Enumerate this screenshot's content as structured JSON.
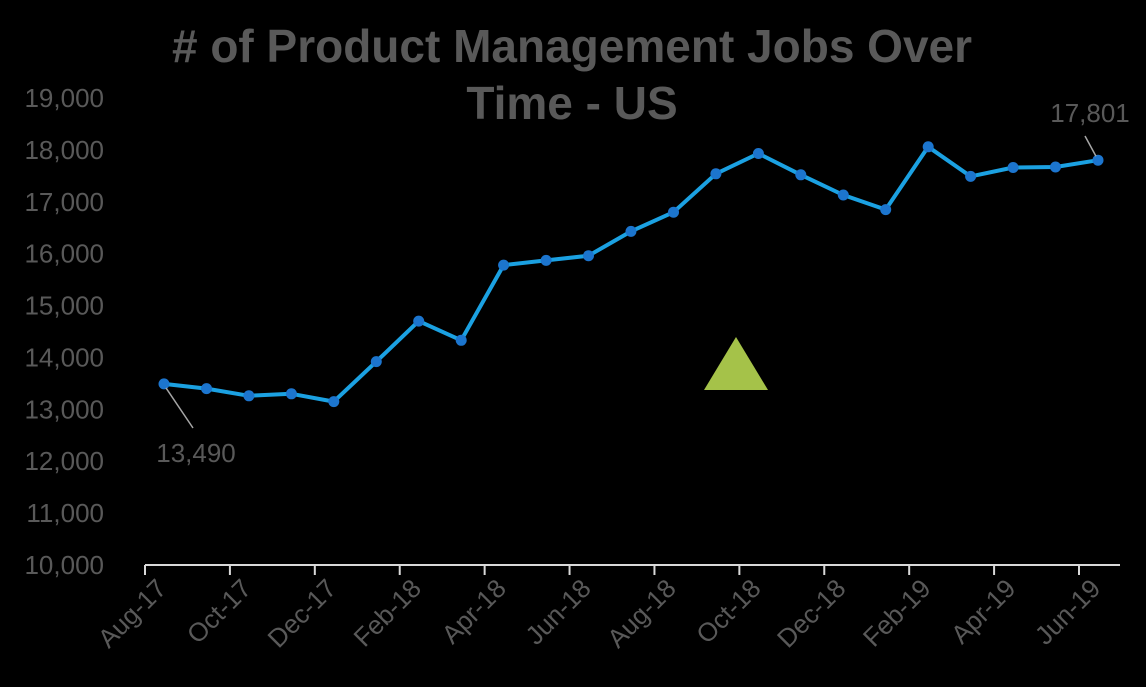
{
  "chart_data": {
    "type": "line",
    "title_lines": [
      "# of Product Management Jobs Over",
      "Time - US"
    ],
    "xlabel": "",
    "ylabel": "",
    "ylim": [
      10000,
      19000
    ],
    "yticks": [
      10000,
      11000,
      12000,
      13000,
      14000,
      15000,
      16000,
      17000,
      18000,
      19000
    ],
    "ytick_labels": [
      "10,000",
      "11,000",
      "12,000",
      "13,000",
      "14,000",
      "15,000",
      "16,000",
      "17,000",
      "18,000",
      "19,000"
    ],
    "x_tick_labels": [
      "Aug-17",
      "Oct-17",
      "Dec-17",
      "Feb-18",
      "Apr-18",
      "Jun-18",
      "Aug-18",
      "Oct-18",
      "Dec-18",
      "Feb-19",
      "Apr-19",
      "Jun-19"
    ],
    "grid": false,
    "legend": "none",
    "series": [
      {
        "color": "#1BA1E2",
        "marker_color": "#1C75CE",
        "points": [
          {
            "x": "Aug-17",
            "y": 13490
          },
          {
            "x": "Sep-17",
            "y": 13400
          },
          {
            "x": "Oct-17",
            "y": 13260
          },
          {
            "x": "Nov-17",
            "y": 13300
          },
          {
            "x": "Dec-17",
            "y": 13150
          },
          {
            "x": "Jan-18",
            "y": 13920
          },
          {
            "x": "Feb-18",
            "y": 14700
          },
          {
            "x": "Mar-18",
            "y": 14330
          },
          {
            "x": "Apr-18",
            "y": 15780
          },
          {
            "x": "May-18",
            "y": 15870
          },
          {
            "x": "Jun-18",
            "y": 15960
          },
          {
            "x": "Jul-18",
            "y": 16430
          },
          {
            "x": "Aug-18",
            "y": 16800
          },
          {
            "x": "Sep-18",
            "y": 17540
          },
          {
            "x": "Oct-18",
            "y": 17930
          },
          {
            "x": "Nov-18",
            "y": 17520
          },
          {
            "x": "Dec-18",
            "y": 17130
          },
          {
            "x": "Jan-19",
            "y": 16850
          },
          {
            "x": "Feb-19",
            "y": 18060
          },
          {
            "x": "Mar-19",
            "y": 17490
          },
          {
            "x": "Apr-19",
            "y": 17660
          },
          {
            "x": "May-19",
            "y": 17670
          },
          {
            "x": "Jun-19",
            "y": 17801
          }
        ]
      }
    ],
    "data_labels": [
      {
        "index": 0,
        "text": "13,490"
      },
      {
        "index": 22,
        "text": "17,801"
      }
    ],
    "annotation": {
      "shape": "up-triangle",
      "color": "#A5C249"
    }
  }
}
